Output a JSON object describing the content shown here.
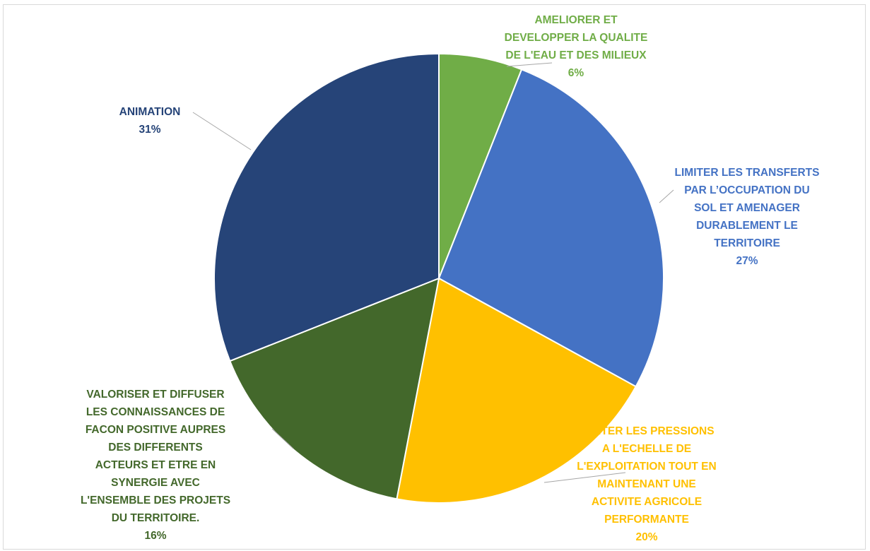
{
  "chart_data": {
    "type": "pie",
    "title": "",
    "start_angle_deg": 0,
    "direction": "clockwise",
    "slices": [
      {
        "name": "AMELIORER ET DEVELOPPER LA QUALITE DE L'EAU ET DES MILIEUX",
        "label_lines": [
          "AMELIORER ET",
          "DEVELOPPER LA QUALITE",
          "DE L'EAU ET DES MILIEUX"
        ],
        "percent_label": "6%",
        "value": 6,
        "color": "#70AD47"
      },
      {
        "name": "LIMITER LES TRANSFERTS PAR L’OCCUPATION DU SOL ET AMENAGER DURABLEMENT LE TERRITOIRE",
        "label_lines": [
          "LIMITER LES TRANSFERTS",
          "PAR L’OCCUPATION DU",
          "SOL ET AMENAGER",
          "DURABLEMENT LE",
          "TERRITOIRE"
        ],
        "percent_label": "27%",
        "value": 27,
        "color": "#4472C4"
      },
      {
        "name": "LIMITER LES PRESSIONS A L'ECHELLE DE L'EXPLOITATION TOUT EN MAINTENANT UNE ACTIVITE AGRICOLE PERFORMANTE",
        "label_lines": [
          "LIMITER LES PRESSIONS",
          "A L'ECHELLE DE",
          "L'EXPLOITATION TOUT EN",
          "MAINTENANT UNE",
          "ACTIVITE AGRICOLE",
          "PERFORMANTE"
        ],
        "percent_label": "20%",
        "value": 20,
        "color": "#FFC000"
      },
      {
        "name": "VALORISER ET DIFFUSER LES CONNAISSANCES DE FACON POSITIVE AUPRES DES DIFFERENTS ACTEURS ET ETRE EN SYNERGIE AVEC L'ENSEMBLE DES PROJETS DU TERRITOIRE.",
        "label_lines": [
          "VALORISER ET DIFFUSER",
          "LES CONNAISSANCES DE",
          "FACON POSITIVE AUPRES",
          "DES DIFFERENTS",
          "ACTEURS ET ETRE EN",
          "SYNERGIE AVEC",
          "L'ENSEMBLE DES PROJETS",
          "DU TERRITOIRE."
        ],
        "percent_label": "16%",
        "value": 16,
        "color": "#43682B"
      },
      {
        "name": "ANIMATION",
        "label_lines": [
          "ANIMATION"
        ],
        "percent_label": "31%",
        "value": 31,
        "color": "#264478"
      }
    ]
  }
}
